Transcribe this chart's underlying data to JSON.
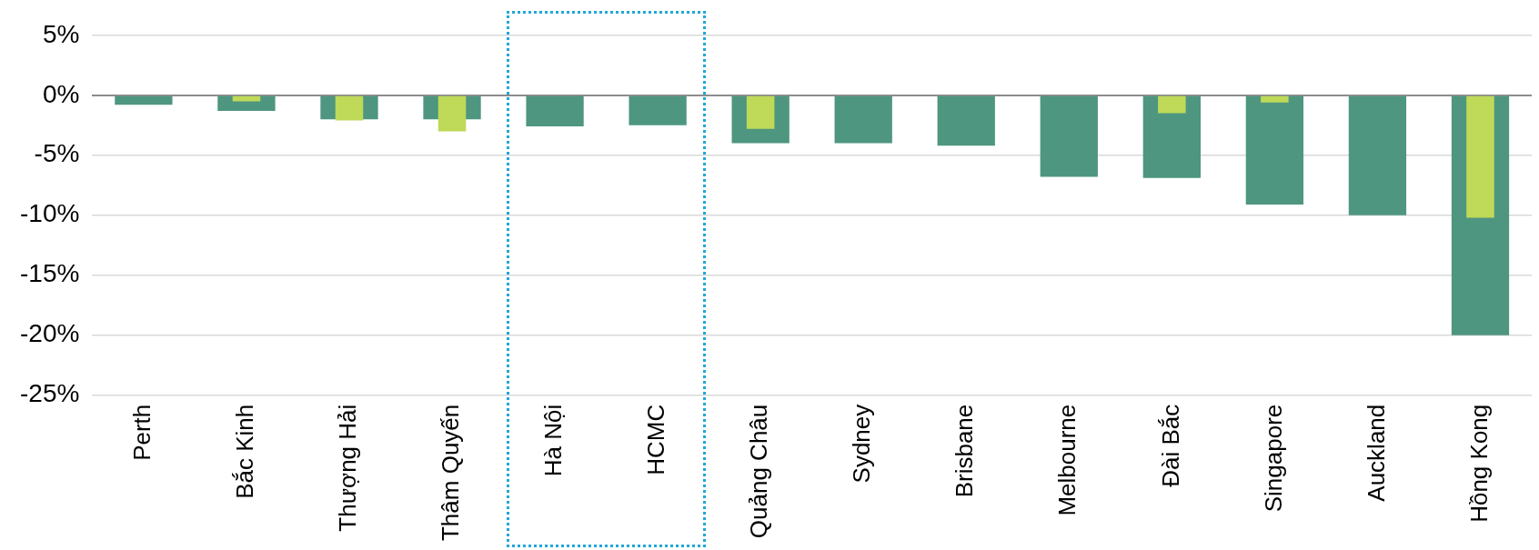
{
  "chart_data": {
    "type": "bar",
    "categories": [
      "Perth",
      "Bắc Kinh",
      "Thượng Hải",
      "Thâm Quyến",
      "Hà Nội",
      "HCMC",
      "Quảng Châu",
      "Sydney",
      "Brisbane",
      "Melbourne",
      "Đài Bắc",
      "Singapore",
      "Auckland",
      "Hồng Kong"
    ],
    "series": [
      {
        "color": "#4e9680",
        "values": [
          -0.8,
          -1.3,
          -2.0,
          -2.0,
          -2.6,
          -2.5,
          -4.0,
          -4.0,
          -4.2,
          -6.8,
          -6.9,
          -9.1,
          -10.0,
          -20.0
        ]
      },
      {
        "color": "#bfd958",
        "values": [
          null,
          -0.5,
          -2.1,
          -3.0,
          null,
          null,
          -2.8,
          null,
          null,
          null,
          -1.5,
          -0.6,
          null,
          -10.2
        ]
      }
    ],
    "ylim": [
      -25,
      5
    ],
    "yticks": [
      {
        "value": 5,
        "label": "5%"
      },
      {
        "value": 0,
        "label": "0%"
      },
      {
        "value": -5,
        "label": "-5%"
      },
      {
        "value": -10,
        "label": "-10%"
      },
      {
        "value": -15,
        "label": "-15%"
      },
      {
        "value": -20,
        "label": "-20%"
      },
      {
        "value": -25,
        "label": "-25%"
      }
    ],
    "grid": "y"
  }
}
